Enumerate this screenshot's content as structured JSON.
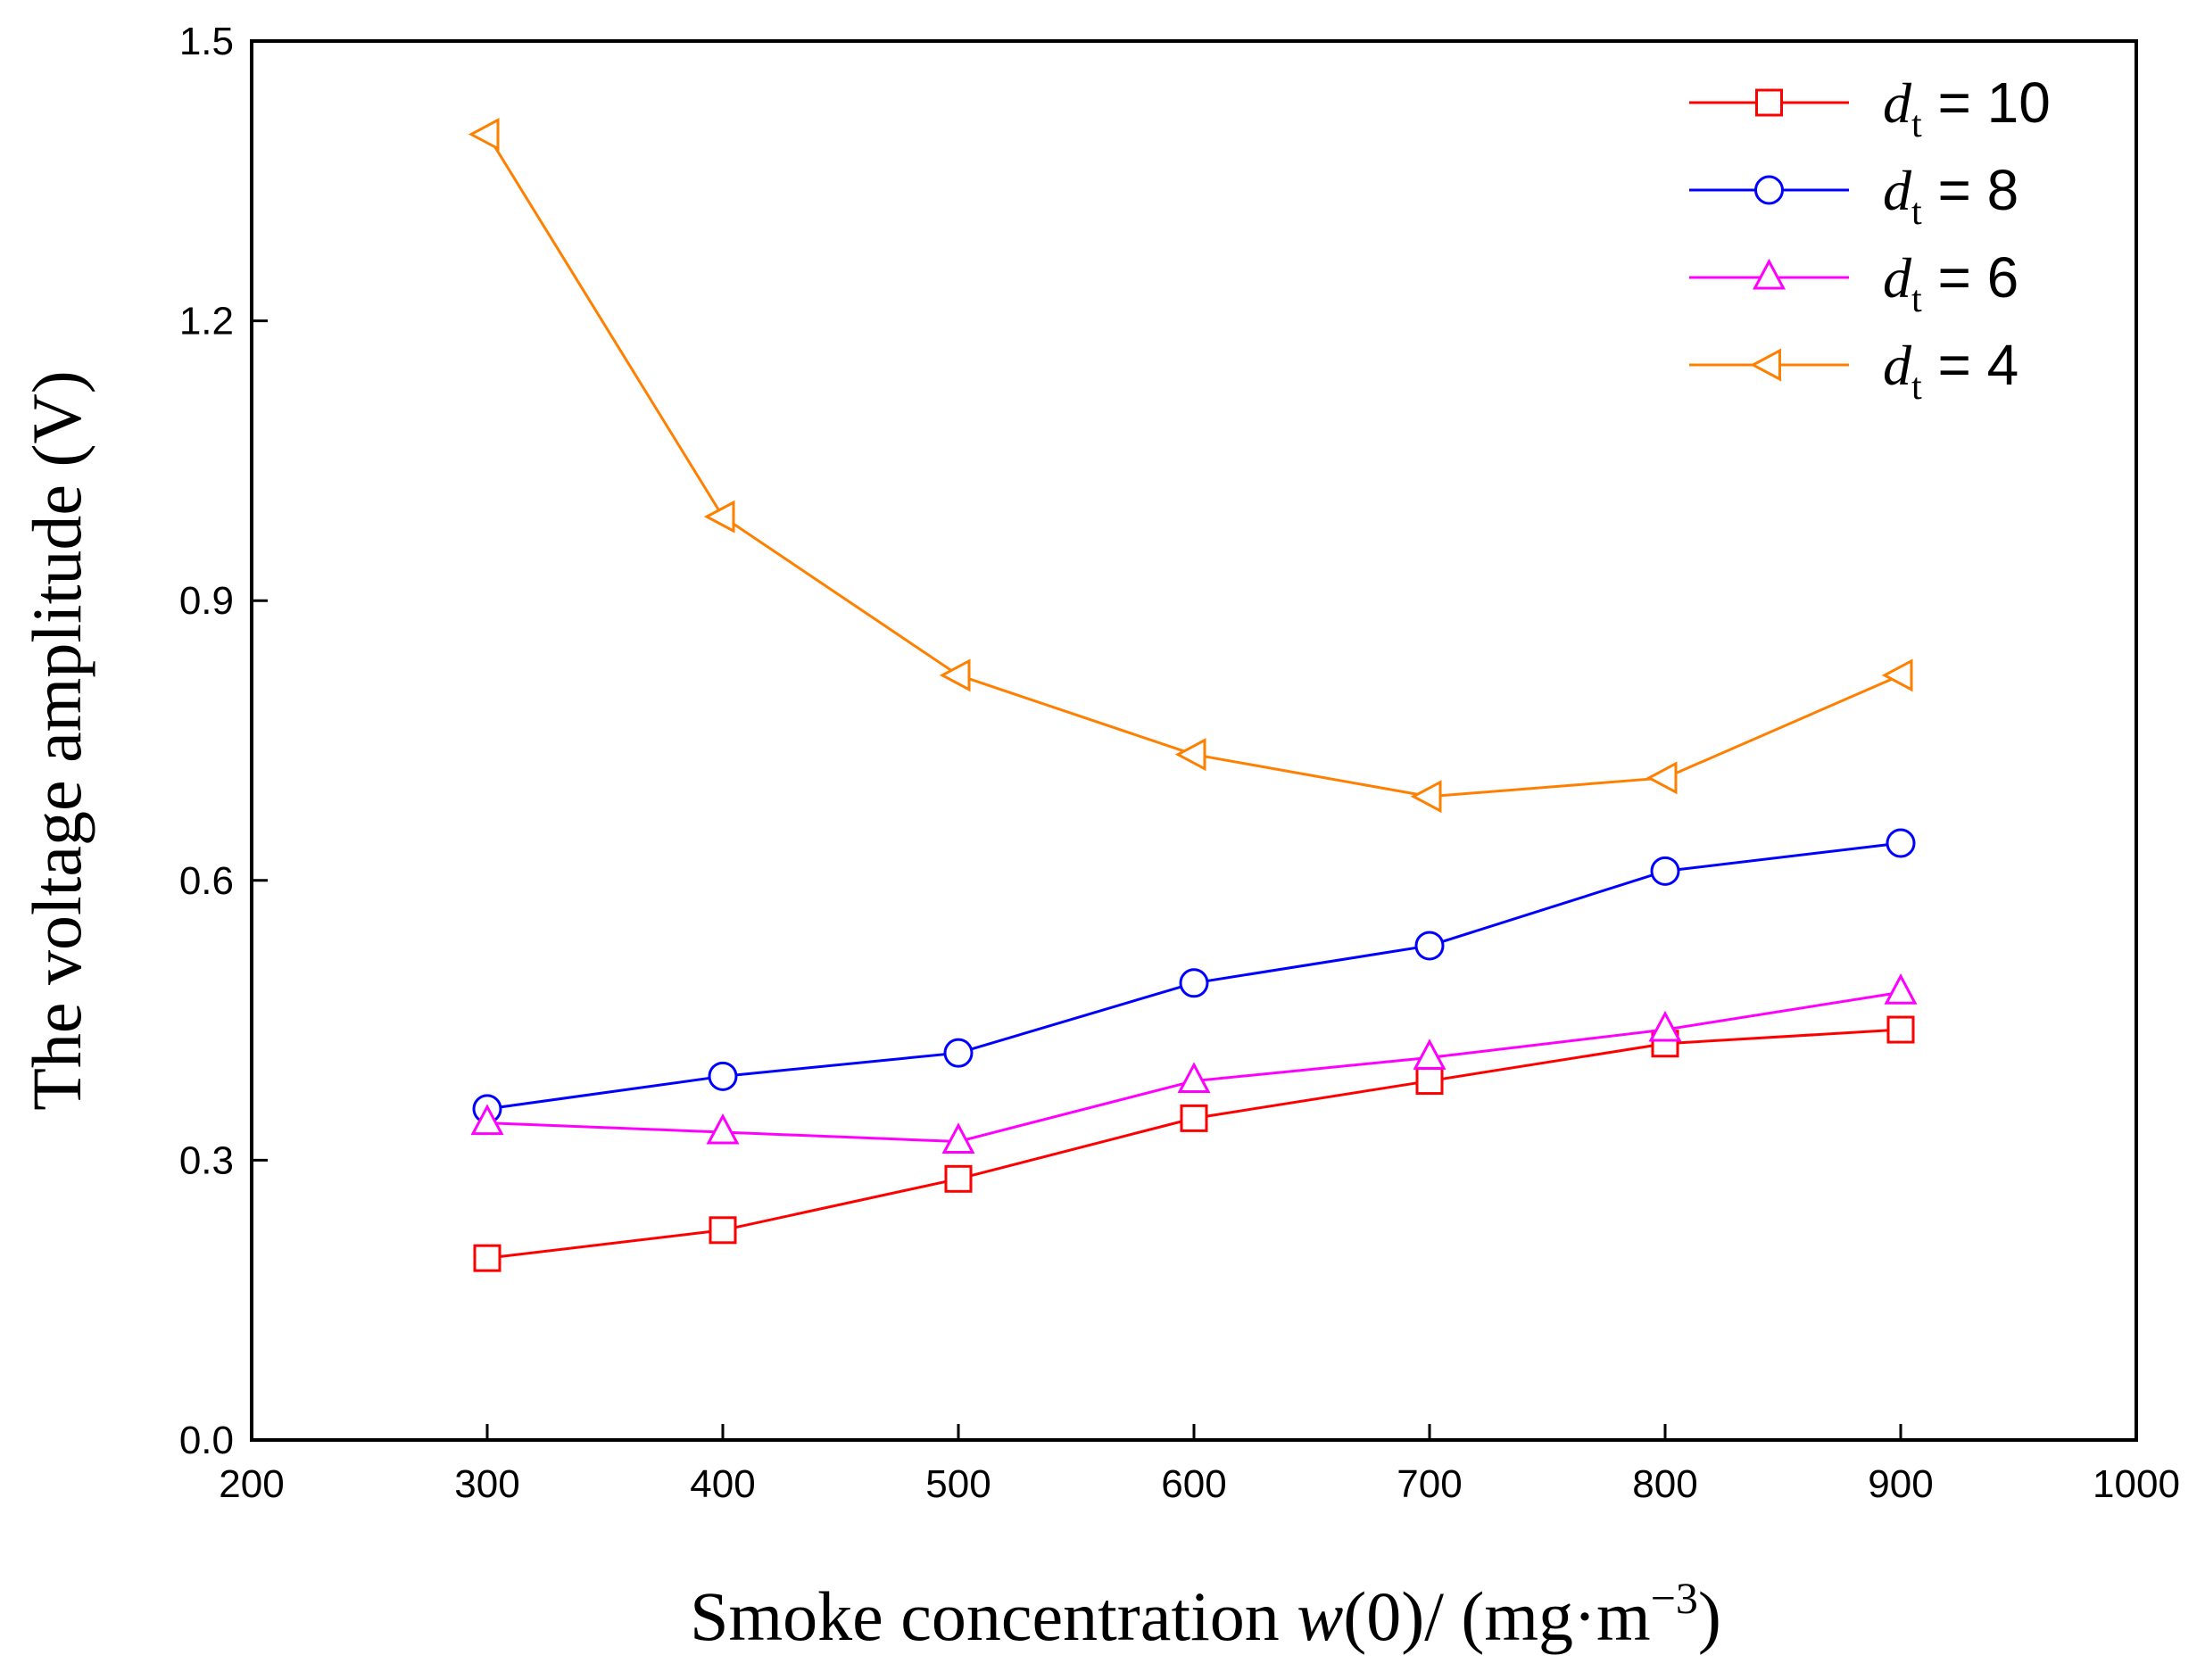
{
  "chart_data": {
    "type": "line",
    "title": "",
    "xlabel": "Smoke concentration w(0)/ (mg·m−3)",
    "xlabel_parts": {
      "prefix": "Smoke concentration ",
      "var": "w",
      "mid": "(0)/ (mg·m",
      "sup": "−3",
      "suffix": ")"
    },
    "ylabel": "The voltage amplitude (V)",
    "xlim": [
      200,
      1000
    ],
    "ylim": [
      0.0,
      1.5
    ],
    "xticks": [
      200,
      300,
      400,
      500,
      600,
      700,
      800,
      900,
      1000
    ],
    "xtick_labels": [
      "200",
      "300",
      "400",
      "500",
      "600",
      "700",
      "800",
      "900",
      "1000"
    ],
    "yticks": [
      0.0,
      0.3,
      0.6,
      0.9,
      1.2,
      1.5
    ],
    "ytick_labels": [
      "0.0",
      "0.3",
      "0.6",
      "0.9",
      "1.2",
      "1.5"
    ],
    "legend_position": "top-right",
    "x": [
      300,
      400,
      500,
      600,
      700,
      800,
      900
    ],
    "series": [
      {
        "name": "dt = 10",
        "var": "d",
        "sub": "t",
        "eq": " = 10",
        "color": "#ff0000",
        "marker": "square",
        "values": [
          0.195,
          0.225,
          0.28,
          0.345,
          0.385,
          0.425,
          0.44
        ]
      },
      {
        "name": "dt = 8",
        "var": "d",
        "sub": "t",
        "eq": " = 8",
        "color": "#0000ff",
        "marker": "circle",
        "values": [
          0.355,
          0.39,
          0.415,
          0.49,
          0.53,
          0.61,
          0.64
        ]
      },
      {
        "name": "dt = 6",
        "var": "d",
        "sub": "t",
        "eq": " = 6",
        "color": "#ff00ff",
        "marker": "triangle-up",
        "values": [
          0.34,
          0.33,
          0.32,
          0.385,
          0.41,
          0.44,
          0.48
        ]
      },
      {
        "name": "dt = 4",
        "var": "d",
        "sub": "t",
        "eq": " = 4",
        "color": "#ff8000",
        "marker": "triangle-left",
        "values": [
          1.4,
          0.99,
          0.82,
          0.735,
          0.69,
          0.71,
          0.82
        ]
      }
    ]
  }
}
